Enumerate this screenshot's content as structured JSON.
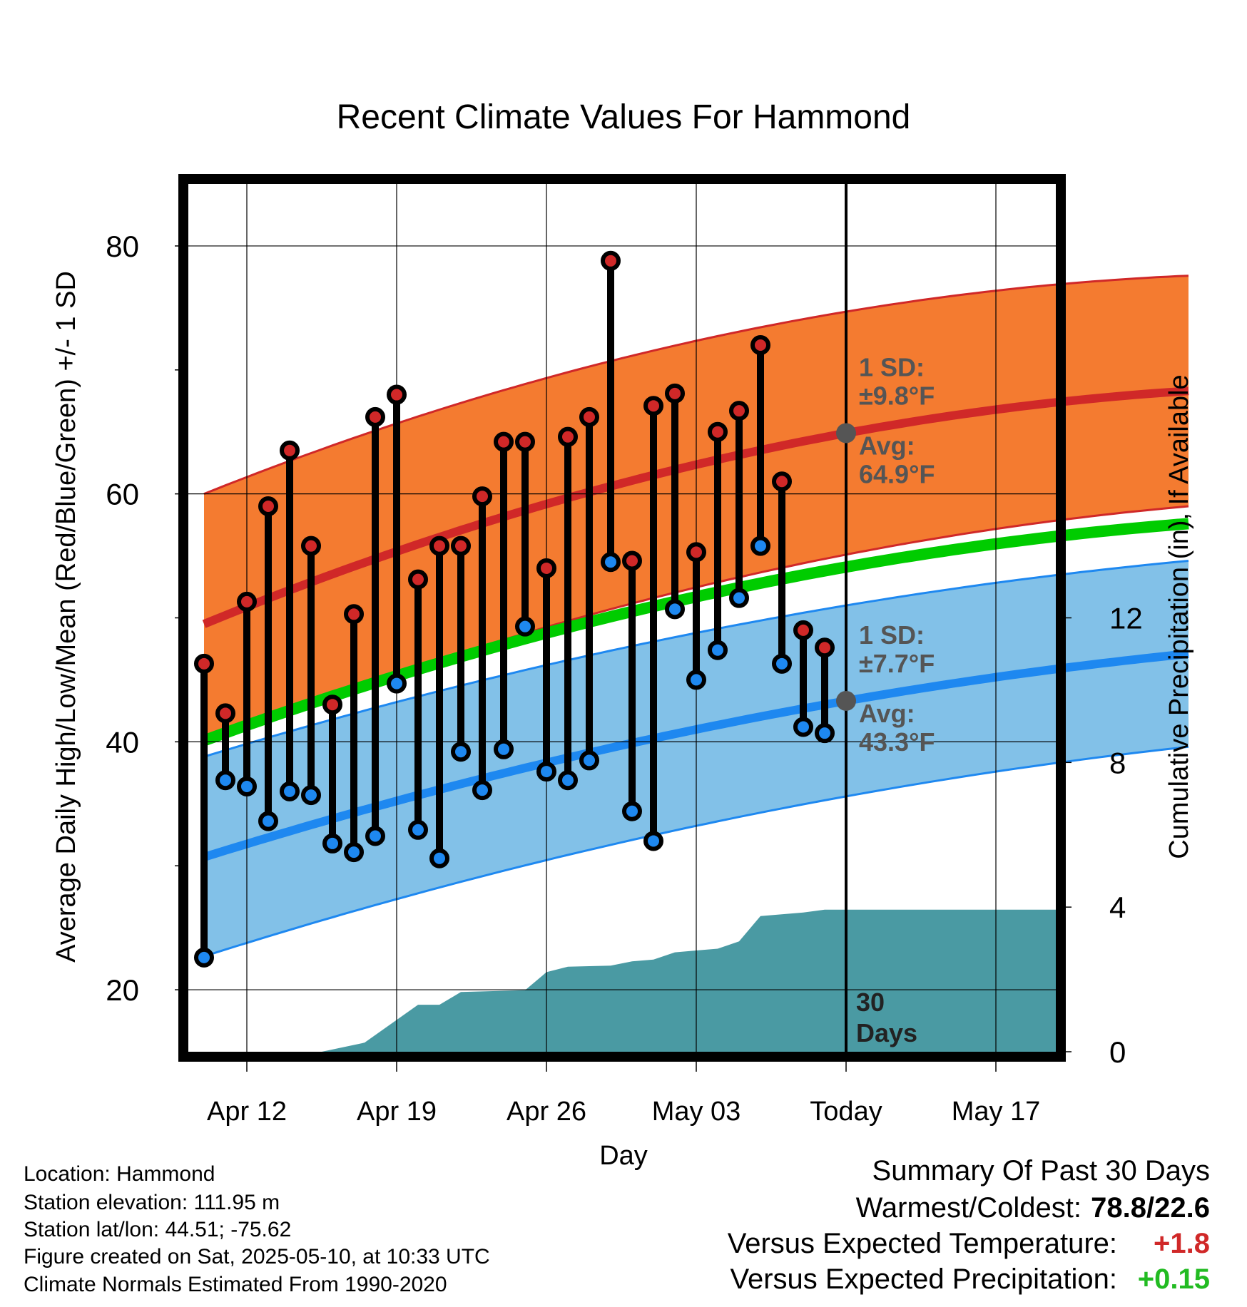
{
  "chart_data": {
    "type": "line",
    "title": "Recent Climate Values For Hammond",
    "xlabel": "Day",
    "ylabel_left": "Average Daily High/Low/Mean (Red/Blue/Green) +/- 1 SD",
    "ylabel_right": "Cumulative Precipitation (in), If Available",
    "x_range_days": [
      -30,
      16
    ],
    "ylim_left": [
      15,
      85
    ],
    "ylim_right": [
      0,
      24
    ],
    "yticks_left": [
      20,
      40,
      60,
      80
    ],
    "yticks_right": [
      0,
      4,
      8,
      12
    ],
    "xticks": [
      {
        "label": "Apr 12",
        "day": -28
      },
      {
        "label": "Apr 19",
        "day": -21
      },
      {
        "label": "Apr 26",
        "day": -14
      },
      {
        "label": "May 03",
        "day": -7
      },
      {
        "label": "Today",
        "day": 0
      },
      {
        "label": "May 17",
        "day": 7
      }
    ],
    "today_line_label": "30\nDays",
    "normals": {
      "high_mean": {
        "start": 49.5,
        "today": 64.9,
        "end": 68.3
      },
      "high_upper": {
        "start": 60.0,
        "today": 74.7,
        "end": 77.6
      },
      "high_lower": {
        "start": 39.8,
        "today": 55.1,
        "end": 59.0
      },
      "low_mean": {
        "start": 30.7,
        "today": 43.3,
        "end": 47.1
      },
      "low_upper": {
        "start": 38.8,
        "today": 51.0,
        "end": 54.6
      },
      "low_lower": {
        "start": 22.7,
        "today": 35.6,
        "end": 39.6
      },
      "mean_line": {
        "start": 40.1,
        "today": 54.1,
        "end": 57.6
      }
    },
    "daily": [
      {
        "day": -30,
        "high": 46.3,
        "low": 22.6
      },
      {
        "day": -29,
        "high": 42.3,
        "low": 36.9
      },
      {
        "day": -28,
        "high": 51.3,
        "low": 36.4
      },
      {
        "day": -27,
        "high": 59.0,
        "low": 33.6
      },
      {
        "day": -26,
        "high": 63.5,
        "low": 36.0
      },
      {
        "day": -25,
        "high": 55.8,
        "low": 35.7
      },
      {
        "day": -24,
        "high": 43.0,
        "low": 31.8
      },
      {
        "day": -23,
        "high": 50.3,
        "low": 31.1
      },
      {
        "day": -22,
        "high": 66.2,
        "low": 32.4
      },
      {
        "day": -21,
        "high": 68.0,
        "low": 44.7
      },
      {
        "day": -20,
        "high": 53.1,
        "low": 32.9
      },
      {
        "day": -19,
        "high": 55.8,
        "low": 30.6
      },
      {
        "day": -18,
        "high": 55.8,
        "low": 39.2
      },
      {
        "day": -17,
        "high": 59.8,
        "low": 36.1
      },
      {
        "day": -16,
        "high": 64.2,
        "low": 39.4
      },
      {
        "day": -15,
        "high": 64.2,
        "low": 49.3
      },
      {
        "day": -14,
        "high": 54.0,
        "low": 37.6
      },
      {
        "day": -13,
        "high": 64.6,
        "low": 36.9
      },
      {
        "day": -12,
        "high": 66.2,
        "low": 38.5
      },
      {
        "day": -11,
        "high": 78.8,
        "low": 54.5
      },
      {
        "day": -10,
        "high": 54.6,
        "low": 34.4
      },
      {
        "day": -9,
        "high": 67.1,
        "low": 32.0
      },
      {
        "day": -8,
        "high": 68.1,
        "low": 50.7
      },
      {
        "day": -7,
        "high": 55.3,
        "low": 45.0
      },
      {
        "day": -6,
        "high": 65.0,
        "low": 47.4
      },
      {
        "day": -5,
        "high": 66.7,
        "low": 51.6
      },
      {
        "day": -4,
        "high": 72.0,
        "low": 55.8
      },
      {
        "day": -3,
        "high": 61.0,
        "low": 46.3
      },
      {
        "day": -2,
        "high": 49.0,
        "low": 41.2
      },
      {
        "day": -1,
        "high": 47.6,
        "low": 40.7
      }
    ],
    "precip_cumulative": [
      {
        "day": -30.7,
        "value": 0.0
      },
      {
        "day": -24.5,
        "value": 0.0
      },
      {
        "day": -22.5,
        "value": 0.25
      },
      {
        "day": -20.0,
        "value": 1.3
      },
      {
        "day": -19.0,
        "value": 1.3
      },
      {
        "day": -18.0,
        "value": 1.65
      },
      {
        "day": -15.0,
        "value": 1.7
      },
      {
        "day": -14.0,
        "value": 2.2
      },
      {
        "day": -13.0,
        "value": 2.35
      },
      {
        "day": -11.0,
        "value": 2.38
      },
      {
        "day": -10.0,
        "value": 2.5
      },
      {
        "day": -9.0,
        "value": 2.55
      },
      {
        "day": -8.0,
        "value": 2.75
      },
      {
        "day": -7.0,
        "value": 2.8
      },
      {
        "day": -6.0,
        "value": 2.85
      },
      {
        "day": -5.0,
        "value": 3.05
      },
      {
        "day": -4.0,
        "value": 3.75
      },
      {
        "day": -3.0,
        "value": 3.8
      },
      {
        "day": -2.0,
        "value": 3.85
      },
      {
        "day": -1.0,
        "value": 3.93
      },
      {
        "day": 9.9,
        "value": 3.93
      }
    ],
    "annotations": {
      "high_sd": "1 SD:\n±9.8°F",
      "high_avg": "Avg:\n64.9°F",
      "low_sd": "1 SD:\n±7.7°F",
      "low_avg": "Avg:\n43.3°F"
    },
    "colors": {
      "high_band": "#f47b30",
      "high_line": "#d02828",
      "low_band": "#82c1e8",
      "low_line": "#1e88f0",
      "mean_line": "#00cc00",
      "precip": "#4a9aa3",
      "high_dot": "#d02828",
      "low_dot": "#1e88f0",
      "annotation_text": "#555555"
    }
  },
  "info": {
    "location": "Location: Hammond",
    "elevation": "Station elevation: 111.95 m",
    "latlon": "Station lat/lon: 44.51; -75.62",
    "created": "Figure created on Sat, 2025-05-10, at 10:33 UTC",
    "normals": "Climate Normals Estimated From 1990-2020"
  },
  "summary": {
    "heading": "Summary Of Past 30 Days",
    "warm_cold_label": "Warmest/Coldest:",
    "warm_cold_value": "78.8/22.6",
    "temp_label": "Versus Expected Temperature:",
    "temp_value": "+1.8",
    "temp_color": "#d02828",
    "precip_label": "Versus Expected Precipitation:",
    "precip_value": "+0.15",
    "precip_color": "#22bb22"
  }
}
